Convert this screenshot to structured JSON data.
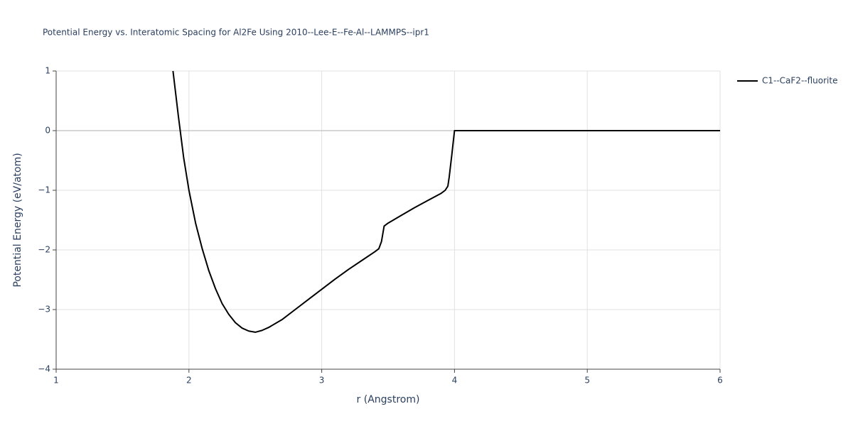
{
  "chart_data": {
    "type": "line",
    "title": "Potential Energy vs. Interatomic Spacing for Al2Fe Using 2010--Lee-E--Fe-Al--LAMMPS--ipr1",
    "x_label": "r (Angstrom)",
    "y_label": "Potential Energy (eV/atom)",
    "xlim": [
      1,
      6
    ],
    "ylim": [
      -4,
      1
    ],
    "xticks": [
      1,
      2,
      3,
      4,
      5,
      6
    ],
    "yticks": [
      1,
      0,
      {
        "value": -1,
        "label": "−1"
      },
      {
        "value": -2,
        "label": "−2"
      },
      {
        "value": -3,
        "label": "−3"
      },
      {
        "value": -4,
        "label": "−4"
      }
    ],
    "grid": true,
    "legend": "top-right",
    "x": [
      1.88,
      1.92,
      1.96,
      2.0,
      2.05,
      2.1,
      2.15,
      2.2,
      2.25,
      2.3,
      2.35,
      2.4,
      2.45,
      2.5,
      2.55,
      2.6,
      2.7,
      2.8,
      2.9,
      3.0,
      3.1,
      3.2,
      3.3,
      3.4,
      3.43,
      3.45,
      3.47,
      3.5,
      3.6,
      3.7,
      3.8,
      3.9,
      3.93,
      3.95,
      3.96,
      3.98,
      4.0,
      4.5,
      5.0,
      5.5,
      6.0
    ],
    "series": [
      {
        "name": "C1--CaF2--fluorite",
        "color": "#000000",
        "values": [
          1.0,
          0.25,
          -0.45,
          -1.0,
          -1.55,
          -1.98,
          -2.35,
          -2.65,
          -2.9,
          -3.08,
          -3.22,
          -3.31,
          -3.36,
          -3.38,
          -3.35,
          -3.3,
          -3.17,
          -3.0,
          -2.83,
          -2.66,
          -2.49,
          -2.33,
          -2.18,
          -2.03,
          -1.98,
          -1.86,
          -1.6,
          -1.55,
          -1.42,
          -1.29,
          -1.17,
          -1.05,
          -1.0,
          -0.93,
          -0.78,
          -0.4,
          0.0,
          0.0,
          0.0,
          0.0,
          0.0
        ]
      }
    ]
  }
}
